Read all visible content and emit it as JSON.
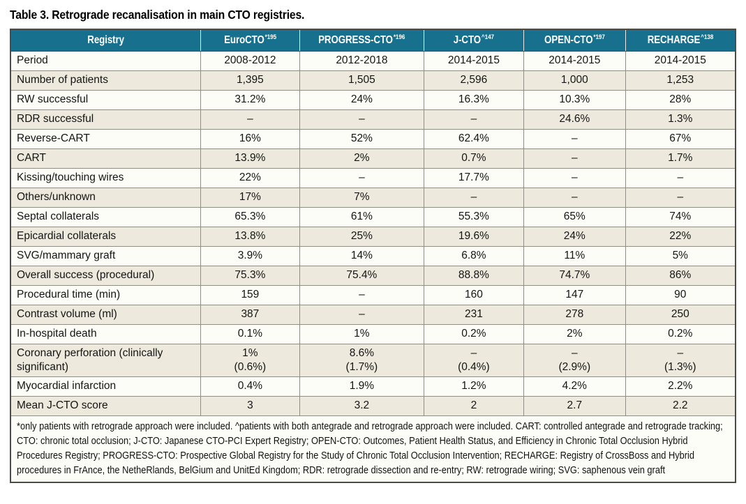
{
  "title": "Table 3. Retrograde recanalisation in main CTO registries.",
  "table": {
    "header": {
      "registry_label": "Registry",
      "columns": [
        {
          "name": "EuroCTO",
          "sup": "*195"
        },
        {
          "name": "PROGRESS-CTO",
          "sup": "*196"
        },
        {
          "name": "J-CTO",
          "sup": "^147"
        },
        {
          "name": "OPEN-CTO",
          "sup": "*197"
        },
        {
          "name": "RECHARGE",
          "sup": "^138"
        }
      ]
    },
    "rows": [
      {
        "label": "Period",
        "values": [
          "2008-2012",
          "2012-2018",
          "2014-2015",
          "2014-2015",
          "2014-2015"
        ]
      },
      {
        "label": "Number of patients",
        "values": [
          "1,395",
          "1,505",
          "2,596",
          "1,000",
          "1,253"
        ]
      },
      {
        "label": "RW successful",
        "values": [
          "31.2%",
          "24%",
          "16.3%",
          "10.3%",
          "28%"
        ]
      },
      {
        "label": "RDR successful",
        "values": [
          "–",
          "–",
          "–",
          "24.6%",
          "1.3%"
        ]
      },
      {
        "label": "Reverse-CART",
        "values": [
          "16%",
          "52%",
          "62.4%",
          "–",
          "67%"
        ]
      },
      {
        "label": "CART",
        "values": [
          "13.9%",
          "2%",
          "0.7%",
          "–",
          "1.7%"
        ]
      },
      {
        "label": "Kissing/touching wires",
        "values": [
          "22%",
          "–",
          "17.7%",
          "–",
          "–"
        ]
      },
      {
        "label": "Others/unknown",
        "values": [
          "17%",
          "7%",
          "–",
          "–",
          "–"
        ]
      },
      {
        "label": "Septal collaterals",
        "values": [
          "65.3%",
          "61%",
          "55.3%",
          "65%",
          "74%"
        ]
      },
      {
        "label": "Epicardial collaterals",
        "values": [
          "13.8%",
          "25%",
          "19.6%",
          "24%",
          "22%"
        ]
      },
      {
        "label": "SVG/mammary graft",
        "values": [
          "3.9%",
          "14%",
          "6.8%",
          "11%",
          "5%"
        ]
      },
      {
        "label": "Overall success (procedural)",
        "values": [
          "75.3%",
          "75.4%",
          "88.8%",
          "74.7%",
          "86%"
        ]
      },
      {
        "label": "Procedural time (min)",
        "values": [
          "159",
          "–",
          "160",
          "147",
          "90"
        ]
      },
      {
        "label": "Contrast volume (ml)",
        "values": [
          "387",
          "–",
          "231",
          "278",
          "250"
        ]
      },
      {
        "label": "In-hospital death",
        "values": [
          "0.1%",
          "1%",
          "0.2%",
          "2%",
          "0.2%"
        ]
      },
      {
        "label": "Coronary perforation (clinically significant)",
        "values": [
          "1%\n(0.6%)",
          "8.6%\n(1.7%)",
          "–\n(0.4%)",
          "–\n(2.9%)",
          "–\n(1.3%)"
        ]
      },
      {
        "label": "Myocardial infarction",
        "values": [
          "0.4%",
          "1.9%",
          "1.2%",
          "4.2%",
          "2.2%"
        ]
      },
      {
        "label": "Mean J-CTO score",
        "values": [
          "3",
          "3.2",
          "2",
          "2.7",
          "2.2"
        ]
      }
    ],
    "footnote": "*only patients with retrograde approach were included. ^patients with both antegrade and retrograde approach were included. CART: controlled antegrade and retrograde tracking; CTO: chronic total occlusion; J-CTO: Japanese CTO-PCI Expert Registry; OPEN-CTO: Outcomes, Patient Health Status, and Efficiency in Chronic Total Occlusion Hybrid Procedures Registry; PROGRESS-CTO: Prospective Global Registry for the Study of Chronic Total Occlusion Intervention; RECHARGE: Registry of CrossBoss and Hybrid procedures in FrAnce, the NetheRlands, BelGium and UnitEd Kingdom; RDR: retrograde dissection and re-entry; RW: retrograde wiring; SVG: saphenous vein graft"
  },
  "layout": {
    "column_widths_pct": [
      26.2,
      13.7,
      17.1,
      13.8,
      14.0,
      15.2
    ]
  },
  "colors": {
    "header_bg": "#16708e",
    "header_text": "#ffffff",
    "row_stripe": "#edeadd",
    "row_plain": "#fdfdf8",
    "border_dark": "#4b4b48",
    "border_light": "#8f8e86",
    "text": "#141414"
  }
}
